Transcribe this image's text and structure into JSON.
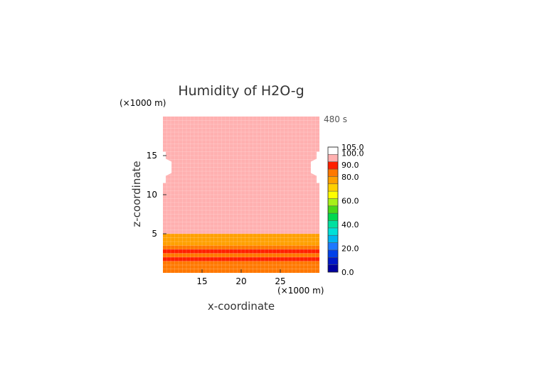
{
  "chart_data": {
    "type": "heatmap",
    "title": "Humidity of H2O-g",
    "xlabel": "x-coordinate",
    "ylabel": "z-coordinate",
    "x_unit": "(×1000 m)",
    "y_unit": "(×1000 m)",
    "time_label": "480 s",
    "xlim": [
      10,
      30
    ],
    "ylim": [
      0,
      20
    ],
    "x_ticks": [
      15,
      20,
      25
    ],
    "y_ticks": [
      5,
      10,
      15
    ],
    "bands": [
      {
        "z_range": [
          0,
          0.5
        ],
        "value": 83
      },
      {
        "z_range": [
          0.5,
          1.0
        ],
        "value": 86
      },
      {
        "z_range": [
          1.0,
          1.5
        ],
        "value": 84
      },
      {
        "z_range": [
          1.5,
          2.0
        ],
        "value": 87
      },
      {
        "z_range": [
          2.0,
          2.5
        ],
        "value": 85
      },
      {
        "z_range": [
          2.5,
          3.0
        ],
        "value": 88
      },
      {
        "z_range": [
          3.0,
          3.5
        ],
        "value": 84
      },
      {
        "z_range": [
          3.5,
          4.0
        ],
        "value": 77
      },
      {
        "z_range": [
          4.0,
          4.5
        ],
        "value": 76
      },
      {
        "z_range": [
          4.5,
          5.0
        ],
        "value": 78
      },
      {
        "z_range": [
          5.0,
          20.0
        ],
        "value": 97
      }
    ],
    "edge_patches": [
      {
        "side": "left",
        "x_range": [
          10,
          11.1
        ],
        "z_range": [
          11.5,
          15.5
        ],
        "value": 102
      },
      {
        "side": "right",
        "x_range": [
          28.9,
          30
        ],
        "z_range": [
          11.5,
          15.5
        ],
        "value": 102
      }
    ],
    "colorbar": {
      "range": [
        0,
        105
      ],
      "labels": [
        "0.0",
        "20.0",
        "40.0",
        "60.0",
        "80.0",
        "90.0",
        "100.0",
        "105.0"
      ],
      "label_values": [
        0,
        20,
        40,
        60,
        80,
        90,
        100,
        105
      ],
      "colors": [
        "#0000a0",
        "#0018c8",
        "#0040e8",
        "#1e78ff",
        "#00b4f0",
        "#00e0d8",
        "#00e0a0",
        "#00d850",
        "#48d818",
        "#a8f018",
        "#ffff00",
        "#ffd000",
        "#ffa000",
        "#ff7800",
        "#ff2000",
        "#ffb0b0",
        "#ffffff"
      ]
    }
  }
}
